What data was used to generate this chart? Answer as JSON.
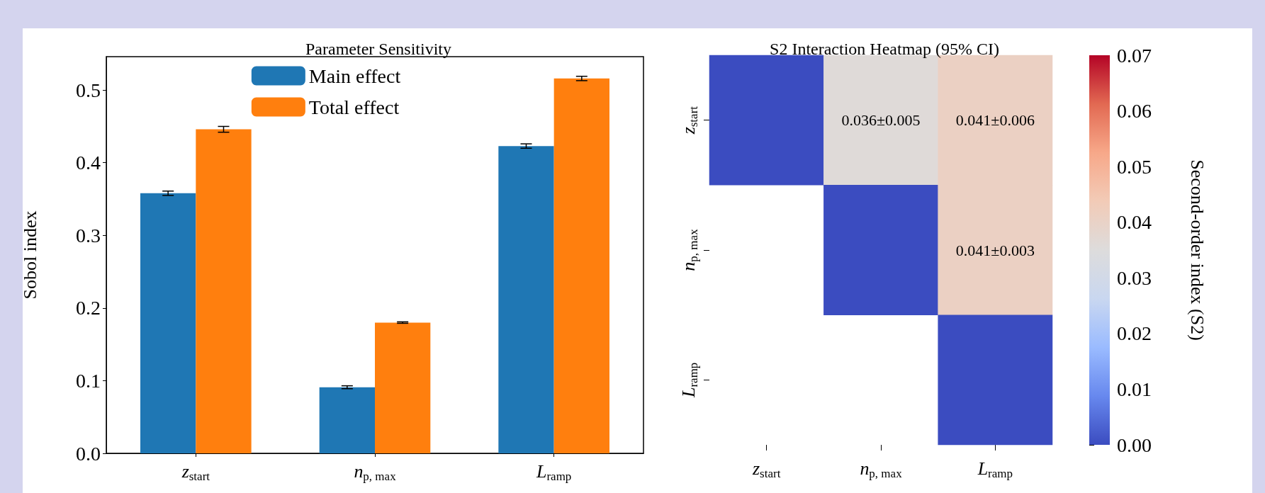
{
  "chart_data": [
    {
      "type": "bar",
      "title": "Parameter Sensitivity",
      "ylabel": "Sobol index",
      "categories": [
        "z$_{start}$",
        "n$_{p, max}$",
        "L$_{ramp}$"
      ],
      "series": [
        {
          "name": "Main effect",
          "color": "#1f77b4",
          "values": [
            0.358,
            0.091,
            0.423
          ],
          "errors": [
            0.003,
            0.002,
            0.003
          ]
        },
        {
          "name": "Total effect",
          "color": "#ff7f0e",
          "values": [
            0.446,
            0.18,
            0.516
          ],
          "errors": [
            0.004,
            0.001,
            0.003
          ]
        }
      ],
      "ylim": [
        0,
        0.546
      ],
      "yticks": [
        {
          "value": 0,
          "label": "0.0"
        },
        0.1,
        0.2,
        0.3,
        0.4,
        0.5
      ],
      "grid": false,
      "legend": "top"
    },
    {
      "type": "heatmap",
      "title": "S2 Interaction Heatmap (95% CI)",
      "clabel": "Second-order index (S2)",
      "categories": [
        "z$_{start}$",
        "n$_{p, max}$",
        "L$_{ramp}$"
      ],
      "y_categories": [
        "z$_{start}$",
        "n$_{p, max}$",
        "L$_{ramp}$"
      ],
      "cells": [
        [
          0,
          0.036,
          0.041
        ],
        [
          null,
          0,
          0.041
        ],
        [
          null,
          null,
          0
        ]
      ],
      "cell_labels": [
        [
          null,
          "0.036±0.005",
          "0.041±0.006"
        ],
        [
          null,
          null,
          "0.041±0.003"
        ],
        [
          null,
          null,
          null
        ]
      ],
      "clim": [
        0,
        0.07
      ],
      "cticks": [
        {
          "value": 0,
          "label": "0.00"
        },
        {
          "value": 0.01,
          "label": "0.01"
        },
        {
          "value": 0.02,
          "label": "0.02"
        },
        {
          "value": 0.03,
          "label": "0.03"
        },
        {
          "value": 0.04,
          "label": "0.04"
        },
        {
          "value": 0.05,
          "label": "0.05"
        },
        {
          "value": 0.06,
          "label": "0.06"
        },
        {
          "value": 0.07,
          "label": "0.07"
        }
      ]
    }
  ]
}
